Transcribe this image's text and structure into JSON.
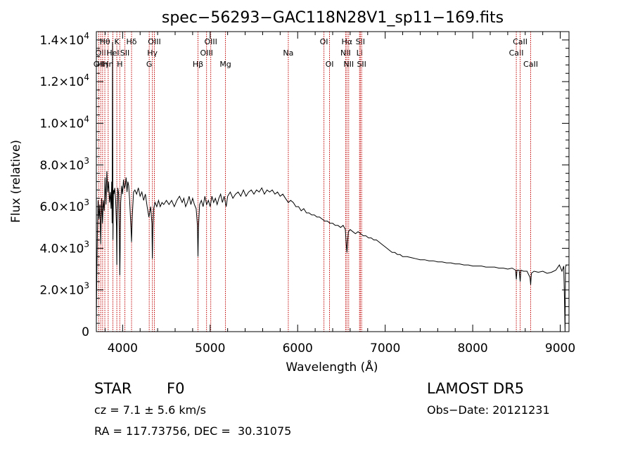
{
  "chart_data": {
    "type": "line",
    "title": "spec−56293−GAC118N28V1_sp11−169.fits",
    "xlabel": "Wavelength (Å)",
    "ylabel": "Flux (relative)",
    "xlim": [
      3700,
      9100
    ],
    "ylim": [
      0,
      14400
    ],
    "xticks": [
      {
        "value": 4000,
        "label": "4000"
      },
      {
        "value": 5000,
        "label": "5000"
      },
      {
        "value": 6000,
        "label": "6000"
      },
      {
        "value": 7000,
        "label": "7000"
      },
      {
        "value": 8000,
        "label": "8000"
      },
      {
        "value": 9000,
        "label": "9000"
      }
    ],
    "yticks": [
      {
        "value": 0,
        "mant": "0",
        "exp": ""
      },
      {
        "value": 2000,
        "mant": "2.0×10",
        "exp": "3"
      },
      {
        "value": 4000,
        "mant": "4.0×10",
        "exp": "3"
      },
      {
        "value": 6000,
        "mant": "6.0×10",
        "exp": "3"
      },
      {
        "value": 8000,
        "mant": "8.0×10",
        "exp": "3"
      },
      {
        "value": 10000,
        "mant": "1.0×10",
        "exp": "4"
      },
      {
        "value": 12000,
        "mant": "1.2×10",
        "exp": "4"
      },
      {
        "value": 14000,
        "mant": "1.4×10",
        "exp": "4"
      }
    ],
    "line_color": "#000000",
    "marker_color": "#c00000",
    "series": [
      {
        "points": [
          [
            3700,
            400
          ],
          [
            3705,
            2600
          ],
          [
            3712,
            4800
          ],
          [
            3720,
            6300
          ],
          [
            3730,
            5400
          ],
          [
            3740,
            6100
          ],
          [
            3750,
            4200
          ],
          [
            3760,
            6400
          ],
          [
            3770,
            5200
          ],
          [
            3780,
            6300
          ],
          [
            3790,
            5800
          ],
          [
            3800,
            7400
          ],
          [
            3810,
            6100
          ],
          [
            3820,
            7700
          ],
          [
            3830,
            6700
          ],
          [
            3840,
            7200
          ],
          [
            3850,
            6200
          ],
          [
            3860,
            6700
          ],
          [
            3868,
            5900
          ],
          [
            3875,
            7200
          ],
          [
            3880,
            5200
          ],
          [
            3885,
            13900
          ],
          [
            3890,
            4400
          ],
          [
            3895,
            6800
          ],
          [
            3900,
            6600
          ],
          [
            3910,
            6900
          ],
          [
            3920,
            6300
          ],
          [
            3930,
            5100
          ],
          [
            3934,
            3200
          ],
          [
            3938,
            5600
          ],
          [
            3945,
            6900
          ],
          [
            3955,
            6600
          ],
          [
            3963,
            4500
          ],
          [
            3968,
            2700
          ],
          [
            3972,
            3700
          ],
          [
            3978,
            6200
          ],
          [
            3990,
            7000
          ],
          [
            4000,
            6600
          ],
          [
            4010,
            7300
          ],
          [
            4020,
            6900
          ],
          [
            4030,
            7000
          ],
          [
            4040,
            7400
          ],
          [
            4050,
            6700
          ],
          [
            4060,
            7200
          ],
          [
            4070,
            7000
          ],
          [
            4080,
            6300
          ],
          [
            4095,
            5000
          ],
          [
            4102,
            4300
          ],
          [
            4110,
            5500
          ],
          [
            4125,
            6700
          ],
          [
            4140,
            6800
          ],
          [
            4160,
            6600
          ],
          [
            4180,
            6900
          ],
          [
            4200,
            6500
          ],
          [
            4220,
            6700
          ],
          [
            4240,
            6300
          ],
          [
            4260,
            6600
          ],
          [
            4280,
            6000
          ],
          [
            4300,
            5500
          ],
          [
            4320,
            6000
          ],
          [
            4335,
            5200
          ],
          [
            4340,
            3500
          ],
          [
            4345,
            4900
          ],
          [
            4355,
            5900
          ],
          [
            4370,
            6200
          ],
          [
            4390,
            6000
          ],
          [
            4410,
            6300
          ],
          [
            4430,
            6000
          ],
          [
            4450,
            6200
          ],
          [
            4470,
            6100
          ],
          [
            4500,
            6300
          ],
          [
            4530,
            6100
          ],
          [
            4560,
            6300
          ],
          [
            4590,
            6000
          ],
          [
            4620,
            6300
          ],
          [
            4650,
            6500
          ],
          [
            4680,
            6200
          ],
          [
            4700,
            6400
          ],
          [
            4720,
            6000
          ],
          [
            4740,
            6200
          ],
          [
            4760,
            6500
          ],
          [
            4780,
            6100
          ],
          [
            4800,
            6400
          ],
          [
            4820,
            6100
          ],
          [
            4840,
            5900
          ],
          [
            4855,
            5100
          ],
          [
            4861,
            3600
          ],
          [
            4867,
            5000
          ],
          [
            4880,
            6100
          ],
          [
            4900,
            6300
          ],
          [
            4920,
            6000
          ],
          [
            4940,
            6500
          ],
          [
            4960,
            6100
          ],
          [
            4980,
            6300
          ],
          [
            5000,
            6000
          ],
          [
            5020,
            6500
          ],
          [
            5040,
            6200
          ],
          [
            5060,
            6400
          ],
          [
            5080,
            6100
          ],
          [
            5100,
            6400
          ],
          [
            5120,
            6600
          ],
          [
            5140,
            6200
          ],
          [
            5160,
            6500
          ],
          [
            5183,
            6000
          ],
          [
            5200,
            6500
          ],
          [
            5230,
            6700
          ],
          [
            5260,
            6400
          ],
          [
            5290,
            6600
          ],
          [
            5320,
            6700
          ],
          [
            5350,
            6500
          ],
          [
            5380,
            6800
          ],
          [
            5410,
            6500
          ],
          [
            5440,
            6700
          ],
          [
            5470,
            6800
          ],
          [
            5500,
            6600
          ],
          [
            5530,
            6800
          ],
          [
            5560,
            6700
          ],
          [
            5590,
            6900
          ],
          [
            5620,
            6600
          ],
          [
            5650,
            6800
          ],
          [
            5680,
            6700
          ],
          [
            5710,
            6800
          ],
          [
            5740,
            6600
          ],
          [
            5770,
            6700
          ],
          [
            5800,
            6500
          ],
          [
            5830,
            6600
          ],
          [
            5860,
            6400
          ],
          [
            5893,
            6200
          ],
          [
            5920,
            6300
          ],
          [
            5950,
            6200
          ],
          [
            5980,
            6000
          ],
          [
            6010,
            6000
          ],
          [
            6040,
            5800
          ],
          [
            6070,
            5900
          ],
          [
            6100,
            5700
          ],
          [
            6130,
            5700
          ],
          [
            6160,
            5600
          ],
          [
            6190,
            5600
          ],
          [
            6220,
            5500
          ],
          [
            6250,
            5500
          ],
          [
            6280,
            5400
          ],
          [
            6310,
            5300
          ],
          [
            6340,
            5300
          ],
          [
            6370,
            5200
          ],
          [
            6400,
            5200
          ],
          [
            6430,
            5100
          ],
          [
            6460,
            5100
          ],
          [
            6490,
            5000
          ],
          [
            6520,
            5100
          ],
          [
            6545,
            4900
          ],
          [
            6555,
            4200
          ],
          [
            6563,
            3800
          ],
          [
            6570,
            4300
          ],
          [
            6580,
            4800
          ],
          [
            6600,
            4900
          ],
          [
            6630,
            4800
          ],
          [
            6660,
            4700
          ],
          [
            6690,
            4800
          ],
          [
            6720,
            4700
          ],
          [
            6750,
            4600
          ],
          [
            6780,
            4600
          ],
          [
            6810,
            4500
          ],
          [
            6840,
            4500
          ],
          [
            6870,
            4400
          ],
          [
            6900,
            4400
          ],
          [
            6930,
            4300
          ],
          [
            6960,
            4200
          ],
          [
            6990,
            4100
          ],
          [
            7020,
            4000
          ],
          [
            7050,
            3900
          ],
          [
            7080,
            3800
          ],
          [
            7110,
            3800
          ],
          [
            7140,
            3700
          ],
          [
            7170,
            3700
          ],
          [
            7200,
            3600
          ],
          [
            7250,
            3600
          ],
          [
            7300,
            3550
          ],
          [
            7350,
            3500
          ],
          [
            7400,
            3450
          ],
          [
            7450,
            3450
          ],
          [
            7500,
            3400
          ],
          [
            7550,
            3400
          ],
          [
            7600,
            3350
          ],
          [
            7650,
            3350
          ],
          [
            7700,
            3300
          ],
          [
            7750,
            3300
          ],
          [
            7800,
            3250
          ],
          [
            7850,
            3250
          ],
          [
            7900,
            3200
          ],
          [
            7950,
            3200
          ],
          [
            8000,
            3150
          ],
          [
            8050,
            3150
          ],
          [
            8100,
            3150
          ],
          [
            8150,
            3100
          ],
          [
            8200,
            3100
          ],
          [
            8250,
            3100
          ],
          [
            8300,
            3050
          ],
          [
            8350,
            3050
          ],
          [
            8400,
            3000
          ],
          [
            8450,
            3050
          ],
          [
            8490,
            2950
          ],
          [
            8498,
            2500
          ],
          [
            8506,
            2950
          ],
          [
            8530,
            2950
          ],
          [
            8542,
            2400
          ],
          [
            8550,
            2950
          ],
          [
            8580,
            2900
          ],
          [
            8620,
            2900
          ],
          [
            8655,
            2600
          ],
          [
            8662,
            2250
          ],
          [
            8670,
            2800
          ],
          [
            8700,
            2900
          ],
          [
            8750,
            2850
          ],
          [
            8800,
            2900
          ],
          [
            8850,
            2800
          ],
          [
            8900,
            2850
          ],
          [
            8950,
            2950
          ],
          [
            8990,
            3200
          ],
          [
            9020,
            2900
          ],
          [
            9040,
            3150
          ],
          [
            9050,
            1200
          ],
          [
            9055,
            0
          ],
          [
            9060,
            3100
          ],
          [
            9070,
            3200
          ]
        ]
      }
    ],
    "line_markers": [
      {
        "x": 3727,
        "label": "OII",
        "row": 2
      },
      {
        "x": 3750,
        "label": "OII",
        "row": 1
      },
      {
        "x": 3771,
        "label": "Hη",
        "row": 2
      },
      {
        "x": 3797,
        "label": "Hθ",
        "row": 0
      },
      {
        "x": 3835,
        "label": "Hη",
        "row": 2
      },
      {
        "x": 3889,
        "label": "HeI",
        "row": 1
      },
      {
        "x": 3934,
        "label": "K",
        "row": 0
      },
      {
        "x": 3968,
        "label": "H",
        "row": 2
      },
      {
        "x": 4026,
        "label": "SII",
        "row": 1
      },
      {
        "x": 4102,
        "label": "Hδ",
        "row": 0
      },
      {
        "x": 4304,
        "label": "G",
        "row": 2
      },
      {
        "x": 4340,
        "label": "Hγ",
        "row": 1
      },
      {
        "x": 4363,
        "label": "OIII",
        "row": 0
      },
      {
        "x": 4861,
        "label": "Hβ",
        "row": 2
      },
      {
        "x": 4959,
        "label": "OIII",
        "row": 1
      },
      {
        "x": 5007,
        "label": "OIII",
        "row": 0
      },
      {
        "x": 5175,
        "label": "Mg",
        "row": 2
      },
      {
        "x": 5893,
        "label": "Na",
        "row": 1
      },
      {
        "x": 6300,
        "label": "OI",
        "row": 0
      },
      {
        "x": 6364,
        "label": "OI",
        "row": 2
      },
      {
        "x": 6548,
        "label": "NII",
        "row": 1
      },
      {
        "x": 6563,
        "label": "Hα",
        "row": 0
      },
      {
        "x": 6583,
        "label": "NII",
        "row": 2
      },
      {
        "x": 6707,
        "label": "Li",
        "row": 1
      },
      {
        "x": 6716,
        "label": "SII",
        "row": 0
      },
      {
        "x": 6731,
        "label": "SII",
        "row": 2
      },
      {
        "x": 8498,
        "label": "CaII",
        "row": 1
      },
      {
        "x": 8542,
        "label": "CaII",
        "row": 0
      },
      {
        "x": 8662,
        "label": "CaII",
        "row": 2
      }
    ]
  },
  "info": {
    "class": "STAR",
    "subclass": "F0",
    "survey": "LAMOST DR5",
    "redshift": "cz = 7.1 ± 5.6 km/s",
    "obsdate": "Obs−Date: 20121231",
    "coords": "RA = 117.73756, DEC =  30.31075"
  }
}
